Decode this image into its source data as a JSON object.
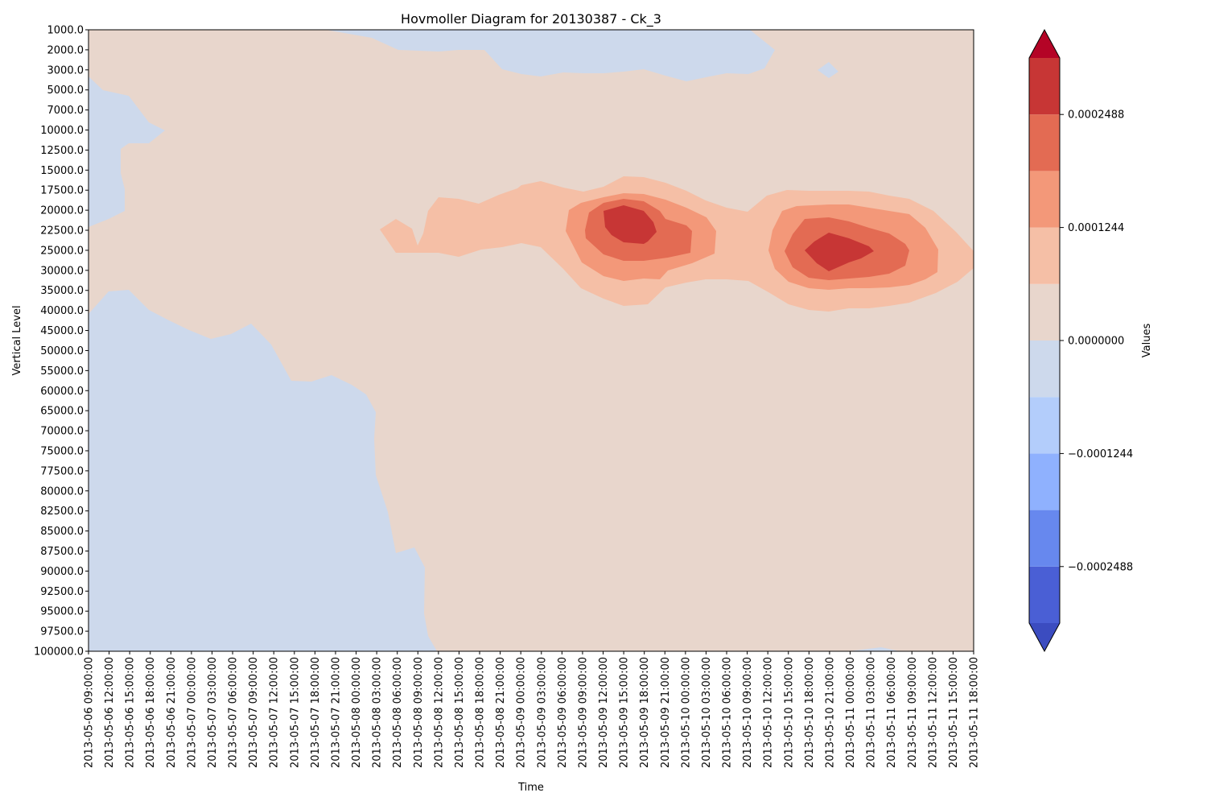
{
  "chart_data": {
    "type": "heatmap",
    "subtype": "filled-contour",
    "title": "Hovmoller Diagram for 20130387 - Ck_3",
    "xlabel": "Time",
    "ylabel": "Vertical Level",
    "colorbar_label": "Values",
    "y_tick_labels": [
      "1000.0",
      "2000.0",
      "3000.0",
      "5000.0",
      "7000.0",
      "10000.0",
      "12500.0",
      "15000.0",
      "17500.0",
      "20000.0",
      "22500.0",
      "25000.0",
      "30000.0",
      "35000.0",
      "40000.0",
      "45000.0",
      "50000.0",
      "55000.0",
      "60000.0",
      "65000.0",
      "70000.0",
      "75000.0",
      "77500.0",
      "80000.0",
      "82500.0",
      "85000.0",
      "87500.0",
      "90000.0",
      "92500.0",
      "95000.0",
      "97500.0",
      "100000.0"
    ],
    "x_tick_labels": [
      "2013-05-06 09:00:00",
      "2013-05-06 12:00:00",
      "2013-05-06 15:00:00",
      "2013-05-06 18:00:00",
      "2013-05-06 21:00:00",
      "2013-05-07 00:00:00",
      "2013-05-07 03:00:00",
      "2013-05-07 06:00:00",
      "2013-05-07 09:00:00",
      "2013-05-07 12:00:00",
      "2013-05-07 15:00:00",
      "2013-05-07 18:00:00",
      "2013-05-07 21:00:00",
      "2013-05-08 00:00:00",
      "2013-05-08 03:00:00",
      "2013-05-08 06:00:00",
      "2013-05-08 09:00:00",
      "2013-05-08 12:00:00",
      "2013-05-08 15:00:00",
      "2013-05-08 18:00:00",
      "2013-05-08 21:00:00",
      "2013-05-09 00:00:00",
      "2013-05-09 03:00:00",
      "2013-05-09 06:00:00",
      "2013-05-09 09:00:00",
      "2013-05-09 12:00:00",
      "2013-05-09 15:00:00",
      "2013-05-09 18:00:00",
      "2013-05-09 21:00:00",
      "2013-05-10 00:00:00",
      "2013-05-10 03:00:00",
      "2013-05-10 06:00:00",
      "2013-05-10 09:00:00",
      "2013-05-10 12:00:00",
      "2013-05-10 15:00:00",
      "2013-05-10 18:00:00",
      "2013-05-10 21:00:00",
      "2013-05-11 00:00:00",
      "2013-05-11 03:00:00",
      "2013-05-11 06:00:00",
      "2013-05-11 09:00:00",
      "2013-05-11 12:00:00",
      "2013-05-11 15:00:00",
      "2013-05-11 18:00:00"
    ],
    "colorbar_ticks": [
      {
        "value": 0.0002488,
        "label": "0.0002488"
      },
      {
        "value": 0.0001244,
        "label": "0.0001244"
      },
      {
        "value": 0.0,
        "label": "0.0000000"
      },
      {
        "value": -0.0001244,
        "label": "−0.0001244"
      },
      {
        "value": -0.0002488,
        "label": "−0.0002488"
      }
    ],
    "color_levels": [
      {
        "min": -0.000311,
        "max": -0.0002488,
        "color": "#4a5fd5"
      },
      {
        "min": -0.0002488,
        "max": -0.0001866,
        "color": "#6788ee"
      },
      {
        "min": -0.0001866,
        "max": -0.0001244,
        "color": "#8fb1fe"
      },
      {
        "min": -0.0001244,
        "max": -6.22e-05,
        "color": "#b3cdfb"
      },
      {
        "min": -6.22e-05,
        "max": 0.0,
        "color": "#cdd9ec"
      },
      {
        "min": 0.0,
        "max": 6.22e-05,
        "color": "#e8d6cc"
      },
      {
        "min": 6.22e-05,
        "max": 0.0001244,
        "color": "#f5bfa6"
      },
      {
        "min": 0.0001244,
        "max": 0.0001866,
        "color": "#f39879"
      },
      {
        "min": 0.0001866,
        "max": 0.0002488,
        "color": "#e36b53"
      },
      {
        "min": 0.0002488,
        "max": 0.000311,
        "color": "#c73635"
      }
    ],
    "extend_colors": {
      "over": "#b40426",
      "under": "#3b4cc0"
    },
    "grid": false,
    "colorbar_position": "right"
  }
}
